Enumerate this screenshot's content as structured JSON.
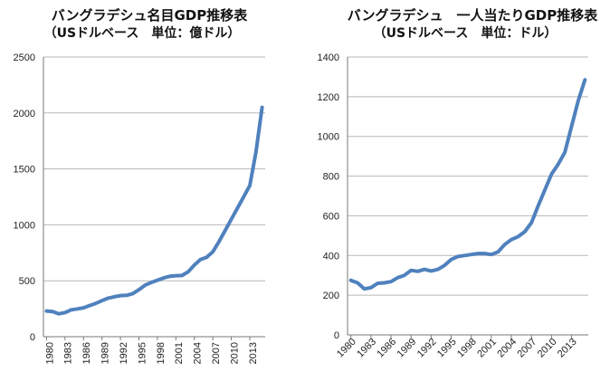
{
  "chart_data": [
    {
      "type": "line",
      "title": "バングラデシュ名目GDP推移表",
      "subtitle": "（USドルベース　単位：億ドル）",
      "xlabel": "",
      "ylabel": "",
      "ylim": [
        0,
        2500
      ],
      "yticks": [
        0,
        500,
        1000,
        1500,
        2000,
        2500
      ],
      "xtick_labels": [
        "1980",
        "1983",
        "1986",
        "1989",
        "1992",
        "1995",
        "1998",
        "2001",
        "2004",
        "2007",
        "2010",
        "2013"
      ],
      "grid": true,
      "legend": "none",
      "color": "#4f81bd",
      "x": [
        1980,
        1981,
        1982,
        1983,
        1984,
        1985,
        1986,
        1987,
        1988,
        1989,
        1990,
        1991,
        1992,
        1993,
        1994,
        1995,
        1996,
        1997,
        1998,
        1999,
        2000,
        2001,
        2002,
        2003,
        2004,
        2005,
        2006,
        2007,
        2008,
        2009,
        2010,
        2011,
        2012,
        2013,
        2014,
        2015
      ],
      "values": [
        230,
        225,
        205,
        215,
        240,
        248,
        258,
        278,
        298,
        322,
        345,
        357,
        367,
        370,
        385,
        420,
        460,
        485,
        505,
        525,
        540,
        545,
        547,
        580,
        640,
        690,
        710,
        760,
        850,
        950,
        1050,
        1150,
        1250,
        1350,
        1650,
        2050
      ]
    },
    {
      "type": "line",
      "title": "バングラデシュ　一人当たりGDP推移表",
      "subtitle": "（USドルベース　単位：ドル）",
      "xlabel": "",
      "ylabel": "",
      "ylim": [
        0,
        1400
      ],
      "yticks": [
        0,
        200,
        400,
        600,
        800,
        1000,
        1200,
        1400
      ],
      "xtick_labels": [
        "1980",
        "1983",
        "1986",
        "1989",
        "1992",
        "1995",
        "1998",
        "2001",
        "2004",
        "2007",
        "2010",
        "2013"
      ],
      "grid": true,
      "legend": "none",
      "color": "#4f81bd",
      "x": [
        1980,
        1981,
        1982,
        1983,
        1984,
        1985,
        1986,
        1987,
        1988,
        1989,
        1990,
        1991,
        1992,
        1993,
        1994,
        1995,
        1996,
        1997,
        1998,
        1999,
        2000,
        2001,
        2002,
        2003,
        2004,
        2005,
        2006,
        2007,
        2008,
        2009,
        2010,
        2011,
        2012,
        2013,
        2014,
        2015
      ],
      "values": [
        275,
        262,
        232,
        238,
        260,
        262,
        268,
        288,
        300,
        325,
        320,
        330,
        322,
        330,
        350,
        380,
        395,
        400,
        405,
        410,
        410,
        405,
        418,
        455,
        480,
        495,
        520,
        565,
        650,
        730,
        810,
        860,
        920,
        1050,
        1180,
        1285
      ]
    }
  ]
}
